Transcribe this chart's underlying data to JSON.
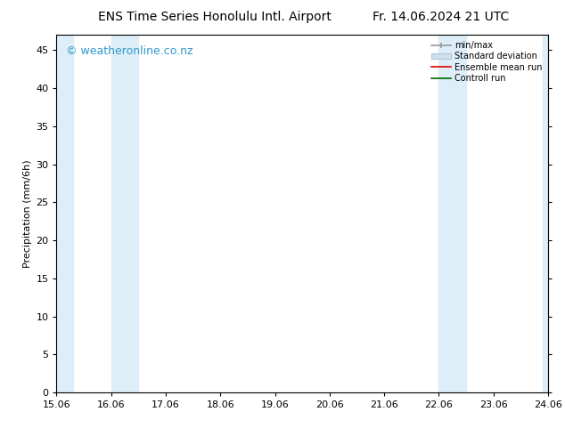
{
  "title_left": "ENS Time Series Honolulu Intl. Airport",
  "title_right": "Fr. 14.06.2024 21 UTC",
  "ylabel": "Precipitation (mm/6h)",
  "xlabel_ticks": [
    "15.06",
    "16.06",
    "17.06",
    "18.06",
    "19.06",
    "20.06",
    "21.06",
    "22.06",
    "23.06",
    "24.06"
  ],
  "xlim": [
    0.0,
    9.0
  ],
  "ylim": [
    0,
    47
  ],
  "yticks": [
    0,
    5,
    10,
    15,
    20,
    25,
    30,
    35,
    40,
    45
  ],
  "bg_color": "#ffffff",
  "plot_bg_color": "#ffffff",
  "shaded_color": "#ddeef8",
  "shaded_bands": [
    [
      0.0,
      0.3
    ],
    [
      1.0,
      1.5
    ],
    [
      7.0,
      7.5
    ],
    [
      8.9,
      9.5
    ]
  ],
  "watermark_text": "© weatheronline.co.nz",
  "watermark_color": "#3399cc",
  "watermark_fontsize": 9,
  "legend_labels": [
    "min/max",
    "Standard deviation",
    "Ensemble mean run",
    "Controll run"
  ],
  "minmax_color": "#999999",
  "std_facecolor": "#cce0f0",
  "std_edgecolor": "#aabbcc",
  "ensemble_color": "#dd0000",
  "control_color": "#006600",
  "title_fontsize": 10,
  "axis_label_fontsize": 8,
  "tick_fontsize": 8,
  "legend_fontsize": 7
}
